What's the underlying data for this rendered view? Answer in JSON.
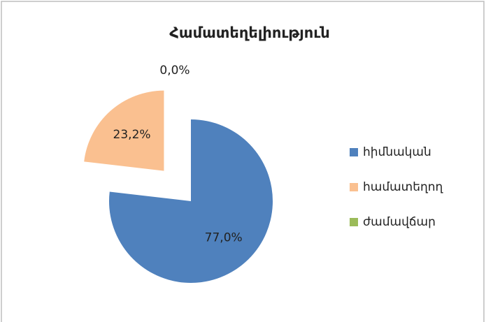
{
  "chart_data": {
    "type": "pie",
    "title": "Համատեղելիություն",
    "categories": [
      "հիմնական",
      "համատեղող",
      "ժամավճար"
    ],
    "values": [
      77.0,
      23.2,
      0.0
    ],
    "value_labels": [
      "77,0%",
      "23,2%",
      "0,0%"
    ],
    "colors": [
      "#4f81bd",
      "#fac090",
      "#9bbb59"
    ],
    "explode": [
      false,
      true,
      false
    ],
    "legend": "right"
  }
}
